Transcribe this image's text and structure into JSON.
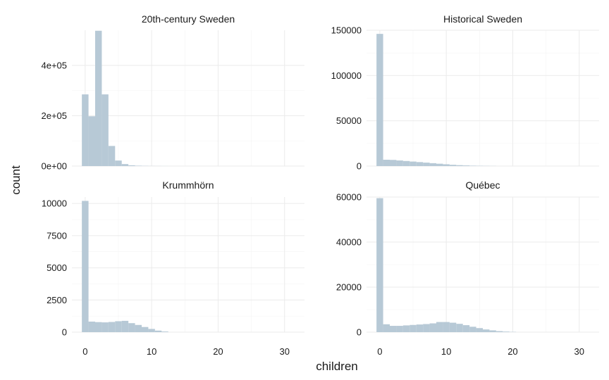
{
  "chart_data": {
    "type": "bar",
    "chart_kind": "faceted histogram",
    "xlabel": "children",
    "ylabel": "count",
    "bar_color": "#b7c9d6",
    "grid": true,
    "x_ticks": [
      0,
      10,
      20,
      30
    ],
    "bin_width": 1,
    "panels": [
      {
        "title": "20th-century Sweden",
        "xlim": [
          -2,
          33
        ],
        "ylim": [
          0,
          540000
        ],
        "y_ticks": [
          0,
          200000,
          400000
        ],
        "y_tick_labels": [
          "0e+00",
          "2e+05",
          "4e+05"
        ],
        "bins": [
          {
            "x": 0,
            "count": 285000
          },
          {
            "x": 1,
            "count": 198000
          },
          {
            "x": 2,
            "count": 538000
          },
          {
            "x": 3,
            "count": 285000
          },
          {
            "x": 4,
            "count": 80000
          },
          {
            "x": 5,
            "count": 22000
          },
          {
            "x": 6,
            "count": 8000
          },
          {
            "x": 7,
            "count": 3000
          },
          {
            "x": 8,
            "count": 1500
          },
          {
            "x": 9,
            "count": 800
          },
          {
            "x": 10,
            "count": 400
          },
          {
            "x": 11,
            "count": 250
          },
          {
            "x": 12,
            "count": 150
          }
        ]
      },
      {
        "title": "Historical Sweden",
        "xlim": [
          -2,
          33
        ],
        "ylim": [
          0,
          150000
        ],
        "y_ticks": [
          0,
          50000,
          100000,
          150000
        ],
        "y_tick_labels": [
          "0",
          "50000",
          "100000",
          "150000"
        ],
        "bins": [
          {
            "x": 0,
            "count": 146000
          },
          {
            "x": 1,
            "count": 7000
          },
          {
            "x": 2,
            "count": 6800
          },
          {
            "x": 3,
            "count": 6200
          },
          {
            "x": 4,
            "count": 5600
          },
          {
            "x": 5,
            "count": 5000
          },
          {
            "x": 6,
            "count": 4400
          },
          {
            "x": 7,
            "count": 3800
          },
          {
            "x": 8,
            "count": 3200
          },
          {
            "x": 9,
            "count": 2600
          },
          {
            "x": 10,
            "count": 2000
          },
          {
            "x": 11,
            "count": 1400
          },
          {
            "x": 12,
            "count": 1000
          },
          {
            "x": 13,
            "count": 700
          },
          {
            "x": 14,
            "count": 450
          },
          {
            "x": 15,
            "count": 300
          },
          {
            "x": 16,
            "count": 200
          },
          {
            "x": 17,
            "count": 120
          }
        ]
      },
      {
        "title": "Krummhörn",
        "xlim": [
          -2,
          33
        ],
        "ylim": [
          0,
          10500
        ],
        "y_ticks": [
          0,
          2500,
          5000,
          7500,
          10000
        ],
        "y_tick_labels": [
          "0",
          "2500",
          "5000",
          "7500",
          "10000"
        ],
        "bins": [
          {
            "x": 0,
            "count": 10200
          },
          {
            "x": 1,
            "count": 820
          },
          {
            "x": 2,
            "count": 780
          },
          {
            "x": 3,
            "count": 760
          },
          {
            "x": 4,
            "count": 790
          },
          {
            "x": 5,
            "count": 850
          },
          {
            "x": 6,
            "count": 880
          },
          {
            "x": 7,
            "count": 700
          },
          {
            "x": 8,
            "count": 560
          },
          {
            "x": 9,
            "count": 400
          },
          {
            "x": 10,
            "count": 250
          },
          {
            "x": 11,
            "count": 120
          },
          {
            "x": 12,
            "count": 50
          }
        ]
      },
      {
        "title": "Québec",
        "xlim": [
          -2,
          33
        ],
        "ylim": [
          0,
          60000
        ],
        "y_ticks": [
          0,
          20000,
          40000,
          60000
        ],
        "y_tick_labels": [
          "0",
          "20000",
          "40000",
          "60000"
        ],
        "bins": [
          {
            "x": 0,
            "count": 59500
          },
          {
            "x": 1,
            "count": 3500
          },
          {
            "x": 2,
            "count": 2800
          },
          {
            "x": 3,
            "count": 2800
          },
          {
            "x": 4,
            "count": 3000
          },
          {
            "x": 5,
            "count": 3200
          },
          {
            "x": 6,
            "count": 3400
          },
          {
            "x": 7,
            "count": 3600
          },
          {
            "x": 8,
            "count": 3900
          },
          {
            "x": 9,
            "count": 4500
          },
          {
            "x": 10,
            "count": 4500
          },
          {
            "x": 11,
            "count": 4200
          },
          {
            "x": 12,
            "count": 3700
          },
          {
            "x": 13,
            "count": 3100
          },
          {
            "x": 14,
            "count": 2400
          },
          {
            "x": 15,
            "count": 1800
          },
          {
            "x": 16,
            "count": 1200
          },
          {
            "x": 17,
            "count": 800
          },
          {
            "x": 18,
            "count": 450
          },
          {
            "x": 19,
            "count": 250
          },
          {
            "x": 20,
            "count": 120
          }
        ]
      }
    ]
  }
}
